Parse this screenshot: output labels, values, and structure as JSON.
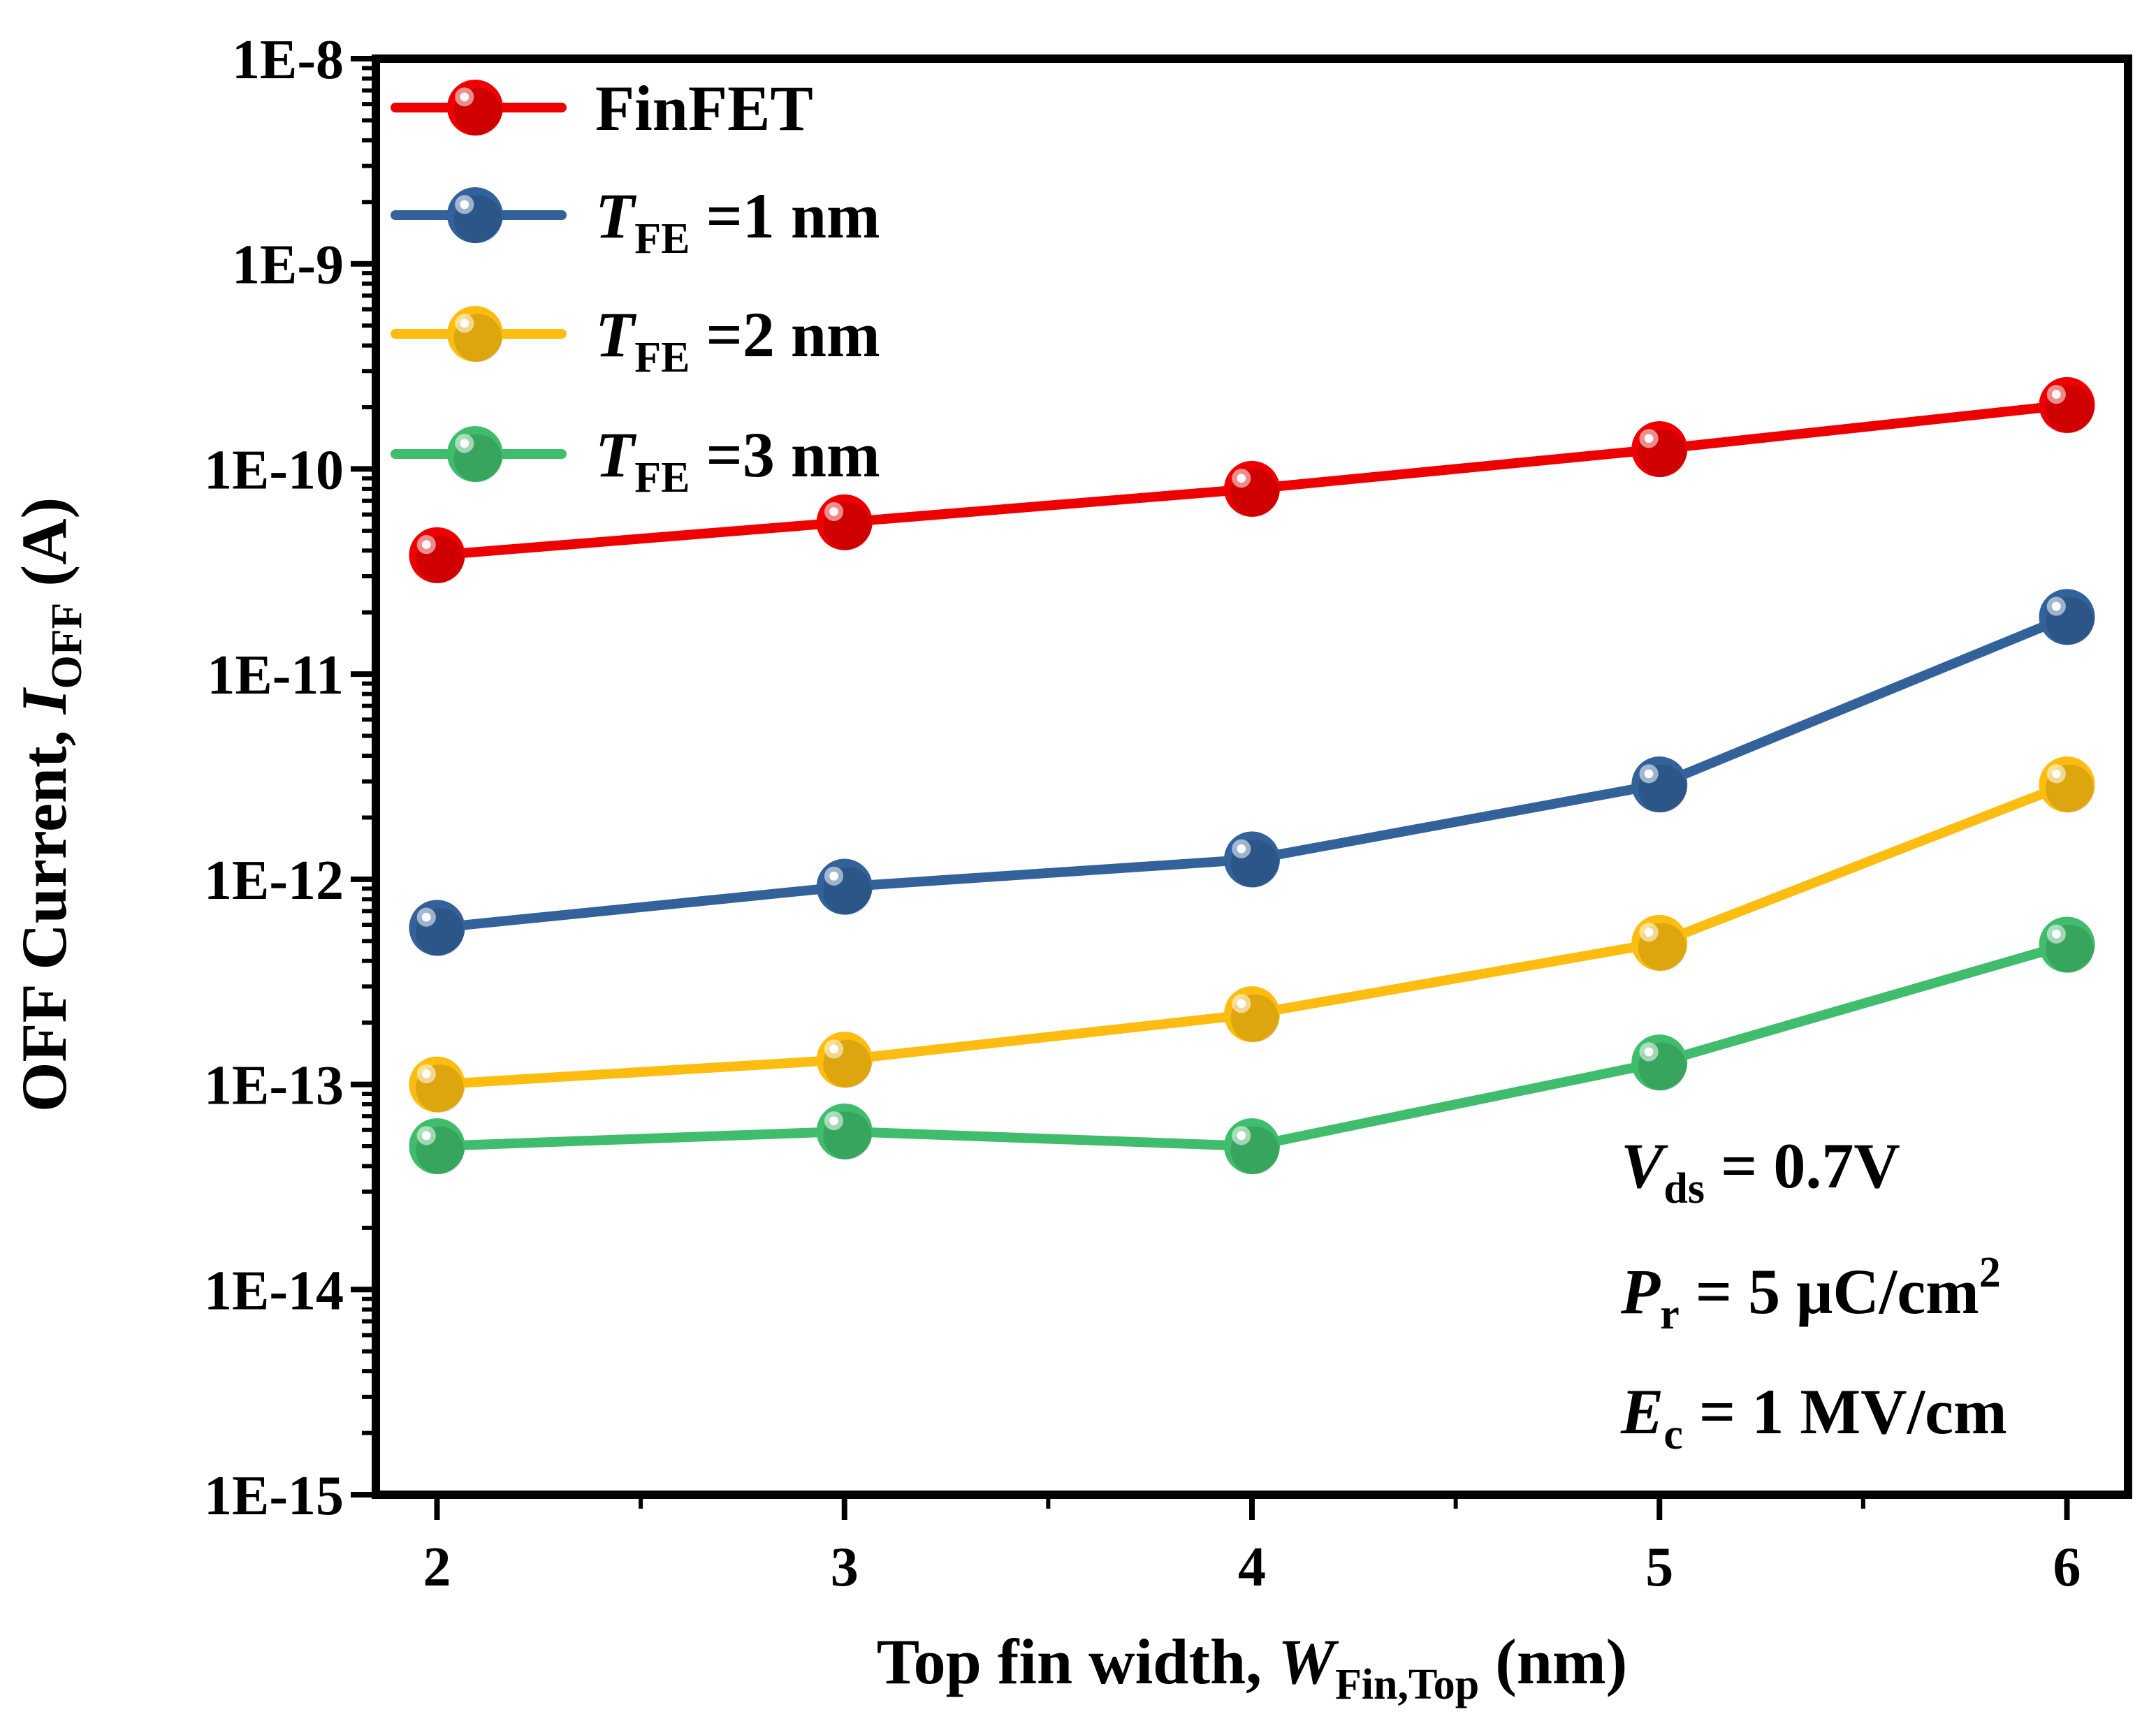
{
  "chart_data": {
    "type": "line",
    "y_scale": "log",
    "xlabel": {
      "text": "Top fin width, ",
      "var": "W",
      "sub": "Fin,Top",
      "unit": " (nm)"
    },
    "ylabel": {
      "text": "OFF Current, ",
      "var": "I",
      "sub": "OFF",
      "unit": " (A)"
    },
    "xlim": [
      1.85,
      6.15
    ],
    "ylim": [
      1e-15,
      1e-08
    ],
    "x_ticks": [
      2,
      3,
      4,
      5,
      6
    ],
    "x_tick_labels": [
      "2",
      "3",
      "4",
      "5",
      "6"
    ],
    "y_ticks": [
      1e-15,
      1e-14,
      1e-13,
      1e-12,
      1e-11,
      1e-10,
      1e-09,
      1e-08
    ],
    "y_tick_labels": [
      "1E-15",
      "1E-14",
      "1E-13",
      "1E-12",
      "1E-11",
      "1E-10",
      "1E-9",
      "1E-8"
    ],
    "x": [
      2,
      3,
      4,
      5,
      6
    ],
    "legend_position": "top-left",
    "series": [
      {
        "name": "FinFET",
        "var": "",
        "sub": "",
        "suffix": "",
        "color": "#ee0000",
        "values": [
          3.8e-11,
          5.5e-11,
          8e-11,
          1.25e-10,
          2.05e-10
        ]
      },
      {
        "name": "",
        "var": "T",
        "sub": "FE",
        "suffix": " =1 nm",
        "color": "#33629b",
        "values": [
          5.8e-13,
          9.2e-13,
          1.25e-12,
          2.9e-12,
          1.9e-11
        ]
      },
      {
        "name": "",
        "var": "T",
        "sub": "FE",
        "suffix": " =2 nm",
        "color": "#fdbd10",
        "values": [
          1e-13,
          1.32e-13,
          2.2e-13,
          4.9e-13,
          2.9e-12
        ]
      },
      {
        "name": "",
        "var": "T",
        "sub": "FE",
        "suffix": " =3 nm",
        "color": "#3fbc6c",
        "values": [
          5e-14,
          5.9e-14,
          5e-14,
          1.28e-13,
          4.8e-13
        ]
      }
    ],
    "annotations": [
      {
        "var": "V",
        "sub": "ds",
        "text": " = 0.7V",
        "sup": ""
      },
      {
        "var": "P",
        "sub": "r",
        "text": " = 5 μC/cm",
        "sup": "2"
      },
      {
        "var": "E",
        "sub": "c",
        "text": " = 1 MV/cm",
        "sup": ""
      }
    ]
  }
}
